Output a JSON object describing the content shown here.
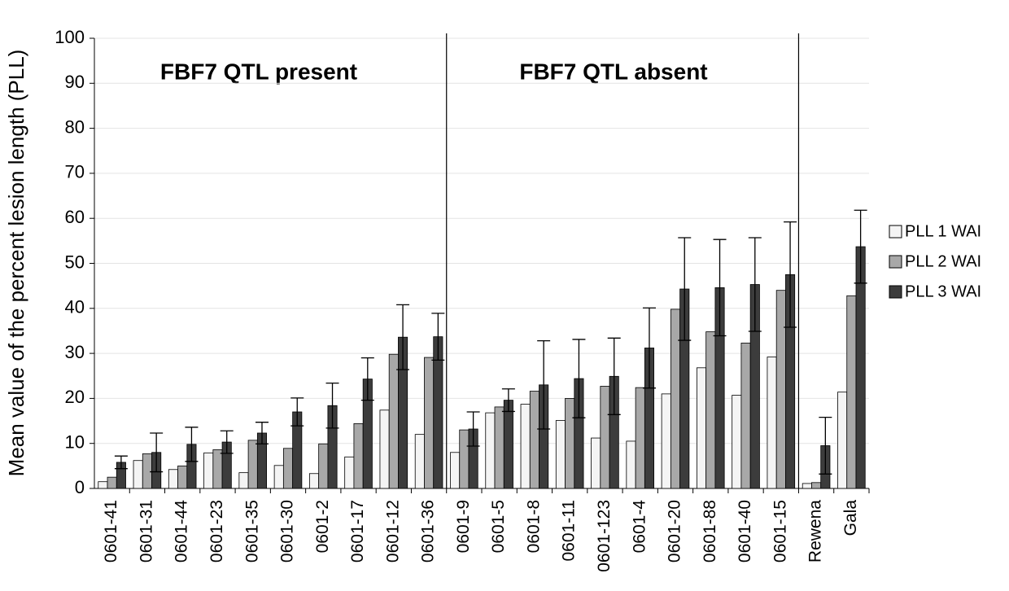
{
  "chart_data": {
    "type": "bar",
    "ylabel": "Mean value of the percent lesion length (PLL)",
    "annotations": [
      "FBF7 QTL present",
      "FBF7 QTL absent"
    ],
    "categories": [
      "0601-41",
      "0601-31",
      "0601-44",
      "0601-23",
      "0601-35",
      "0601-30",
      "0601-2",
      "0601-17",
      "0601-12",
      "0601-36",
      "0601-9",
      "0601-5",
      "0601-8",
      "0601-11",
      "0601-123",
      "0601-4",
      "0601-20",
      "0601-88",
      "0601-40",
      "0601-15",
      "Rewena",
      "Gala"
    ],
    "series": [
      {
        "name": "PLL 1 WAI",
        "color": "#f4f4f4",
        "values": [
          1.5,
          6.2,
          4.2,
          7.9,
          3.5,
          5.1,
          3.3,
          7.0,
          17.4,
          12.0,
          8.0,
          16.8,
          18.7,
          15.1,
          11.2,
          10.5,
          21.0,
          26.8,
          20.7,
          29.2,
          1.1,
          21.4
        ]
      },
      {
        "name": "PLL 2 WAI",
        "color": "#a8a8a8",
        "values": [
          2.5,
          7.7,
          5.0,
          8.6,
          10.7,
          8.9,
          9.9,
          14.4,
          29.8,
          29.1,
          13.0,
          18.1,
          21.6,
          20.0,
          22.7,
          22.4,
          39.8,
          34.8,
          32.3,
          44.0,
          1.3,
          42.8
        ]
      },
      {
        "name": "PLL 3 WAI",
        "color": "#3c3c3c",
        "values": [
          5.8,
          8.0,
          9.8,
          10.3,
          12.3,
          17.0,
          18.4,
          24.3,
          33.6,
          33.7,
          13.2,
          19.6,
          23.0,
          24.4,
          24.9,
          31.2,
          44.3,
          44.6,
          45.3,
          47.5,
          9.5,
          53.7
        ],
        "errors": [
          1.4,
          4.3,
          3.8,
          2.5,
          2.4,
          3.1,
          5.0,
          4.7,
          7.2,
          5.2,
          3.8,
          2.5,
          9.8,
          8.7,
          8.5,
          8.9,
          11.4,
          10.7,
          10.4,
          11.7,
          6.3,
          8.1
        ]
      }
    ],
    "ylim": [
      0,
      100
    ],
    "yticks": [
      0,
      10,
      20,
      30,
      40,
      50,
      60,
      70,
      80,
      90,
      100
    ],
    "grid": true,
    "legend": "right"
  }
}
